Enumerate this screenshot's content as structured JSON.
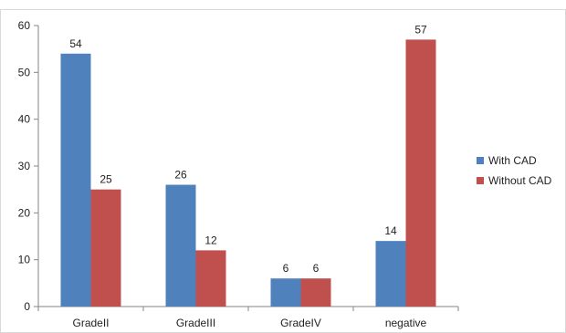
{
  "chart_data": {
    "type": "bar",
    "categories": [
      "GradeII",
      "GradeIII",
      "GradeIV",
      "negative"
    ],
    "series": [
      {
        "name": "With CAD",
        "values": [
          54,
          26,
          6,
          14
        ],
        "color": "#4F81BD"
      },
      {
        "name": "Without CAD",
        "values": [
          25,
          12,
          6,
          57
        ],
        "color": "#C0504D"
      }
    ],
    "ylim": [
      0,
      60
    ],
    "yticks": [
      0,
      10,
      20,
      30,
      40,
      50,
      60
    ],
    "grid": false,
    "legend_position": "right",
    "title": "",
    "xlabel": "",
    "ylabel": ""
  }
}
